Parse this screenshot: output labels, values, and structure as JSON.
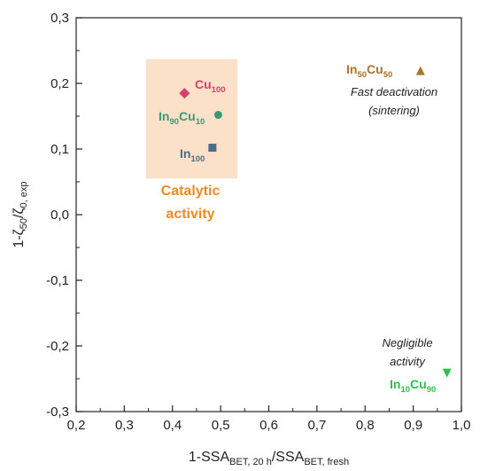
{
  "chart_data": {
    "type": "scatter",
    "xlabel": {
      "prefix": "1-SSA",
      "sub1": "BET, 20 h",
      "mid": "/SSA",
      "sub2": "BET, fresh"
    },
    "ylabel": {
      "prefix": "1-ζ",
      "sub1": "50",
      "mid": "/ζ",
      "sub2": "0, exp"
    },
    "xlim": [
      0.2,
      1.0
    ],
    "ylim": [
      -0.3,
      0.3
    ],
    "xticks": [
      "0,2",
      "0,3",
      "0,4",
      "0,5",
      "0,6",
      "0,7",
      "0,8",
      "0,9",
      "1,0"
    ],
    "yticks": [
      "-0,3",
      "-0,2",
      "-0,1",
      "0,0",
      "0,1",
      "0,2",
      "0,3"
    ],
    "grid": false,
    "series": [
      {
        "name": "Cu",
        "sub": "100",
        "x": 0.425,
        "y": 0.185,
        "marker": "diamond",
        "color": "#d63e6e"
      },
      {
        "name": "In",
        "sub": "90",
        "name2": "Cu",
        "sub2": "10",
        "x": 0.495,
        "y": 0.152,
        "marker": "circle",
        "color": "#3a9a78"
      },
      {
        "name": "In",
        "sub": "100",
        "x": 0.483,
        "y": 0.102,
        "marker": "square",
        "color": "#4c6c8a"
      },
      {
        "name": "In",
        "sub": "50",
        "name2": "Cu",
        "sub2": "50",
        "x": 0.915,
        "y": 0.218,
        "marker": "triangle-up",
        "color": "#a9742c"
      },
      {
        "name": "In",
        "sub": "10",
        "name2": "Cu",
        "sub2": "90",
        "x": 0.97,
        "y": -0.24,
        "marker": "triangle-down",
        "color": "#2ec24a"
      }
    ],
    "annotations": {
      "fast_deactivation": "Fast deactivation",
      "sintering": "(sintering)",
      "negligible": "Negligible",
      "activity": "activity"
    },
    "region": {
      "label1": "Catalytic",
      "label2": "activity",
      "x_range": [
        0.345,
        0.535
      ],
      "y_range": [
        0.055,
        0.237
      ],
      "fill": "#fce1c9",
      "text_color": "#f08a22"
    }
  }
}
